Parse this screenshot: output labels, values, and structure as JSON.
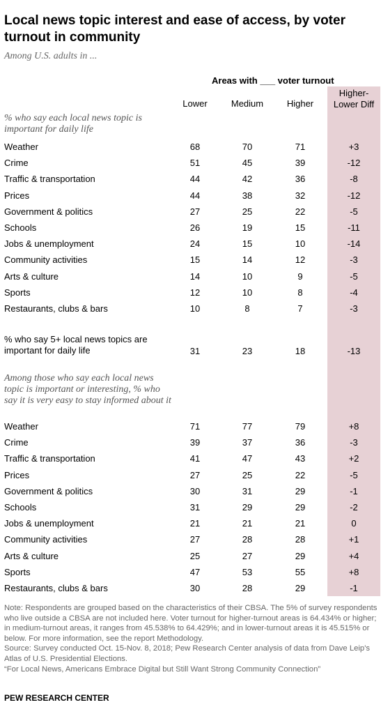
{
  "title": "Local news topic interest and ease of access, by voter turnout in community",
  "subtitle": "Among U.S. adults in ...",
  "chart_data": {
    "type": "table",
    "group_header": "Areas with ___ voter turnout",
    "columns": [
      "Lower",
      "Medium",
      "Higher",
      "Higher-Lower Diff"
    ],
    "section1": {
      "label": "% who say each local news topic is important for daily life",
      "rows": [
        {
          "label": "Weather",
          "values": [
            "68",
            "70",
            "71",
            "+3"
          ]
        },
        {
          "label": "Crime",
          "values": [
            "51",
            "45",
            "39",
            "-12"
          ]
        },
        {
          "label": "Traffic & transportation",
          "values": [
            "44",
            "42",
            "36",
            "-8"
          ]
        },
        {
          "label": "Prices",
          "values": [
            "44",
            "38",
            "32",
            "-12"
          ]
        },
        {
          "label": "Government & politics",
          "values": [
            "27",
            "25",
            "22",
            "-5"
          ]
        },
        {
          "label": "Schools",
          "values": [
            "26",
            "19",
            "15",
            "-11"
          ]
        },
        {
          "label": "Jobs & unemployment",
          "values": [
            "24",
            "15",
            "10",
            "-14"
          ]
        },
        {
          "label": "Community activities",
          "values": [
            "15",
            "14",
            "12",
            "-3"
          ]
        },
        {
          "label": "Arts & culture",
          "values": [
            "14",
            "10",
            "9",
            "-5"
          ]
        },
        {
          "label": "Sports",
          "values": [
            "12",
            "10",
            "8",
            "-4"
          ]
        },
        {
          "label": "Restaurants, clubs & bars",
          "values": [
            "10",
            "8",
            "7",
            "-3"
          ]
        }
      ]
    },
    "summary": {
      "label": "% who say 5+ local news topics are important for daily life",
      "values": [
        "31",
        "23",
        "18",
        "-13"
      ]
    },
    "section2": {
      "label": "Among those who say each local news topic is important or interesting, % who say it is very easy to stay informed about it",
      "rows": [
        {
          "label": "Weather",
          "values": [
            "71",
            "77",
            "79",
            "+8"
          ]
        },
        {
          "label": "Crime",
          "values": [
            "39",
            "37",
            "36",
            "-3"
          ]
        },
        {
          "label": "Traffic & transportation",
          "values": [
            "41",
            "47",
            "43",
            "+2"
          ]
        },
        {
          "label": "Prices",
          "values": [
            "27",
            "25",
            "22",
            "-5"
          ]
        },
        {
          "label": "Government & politics",
          "values": [
            "30",
            "31",
            "29",
            "-1"
          ]
        },
        {
          "label": "Schools",
          "values": [
            "31",
            "29",
            "29",
            "-2"
          ]
        },
        {
          "label": "Jobs & unemployment",
          "values": [
            "21",
            "21",
            "21",
            "0"
          ]
        },
        {
          "label": "Community activities",
          "values": [
            "27",
            "28",
            "28",
            "+1"
          ]
        },
        {
          "label": "Arts & culture",
          "values": [
            "25",
            "27",
            "29",
            "+4"
          ]
        },
        {
          "label": "Sports",
          "values": [
            "47",
            "53",
            "55",
            "+8"
          ]
        },
        {
          "label": "Restaurants, clubs & bars",
          "values": [
            "30",
            "28",
            "29",
            "-1"
          ]
        }
      ]
    },
    "highlight_color": "#e7d1d5"
  },
  "note": "Note: Respondents are grouped based on the characteristics of their CBSA. The 5% of survey respondents who live outside a CBSA are not included here. Voter turnout for higher-turnout areas is 64.434% or higher; in medium-turnout areas, it ranges from 45.538% to 64.429%; and in lower-turnout areas it is 45.515% or below. For more information, see the report Methodology.",
  "source": "Source: Survey conducted Oct. 15-Nov. 8, 2018; Pew Research Center analysis of data from Dave Leip's Atlas of U.S. Presidential Elections.",
  "report": "“For Local News, Americans Embrace Digital but Still Want Strong Community Connection”",
  "logo": "PEW RESEARCH CENTER"
}
